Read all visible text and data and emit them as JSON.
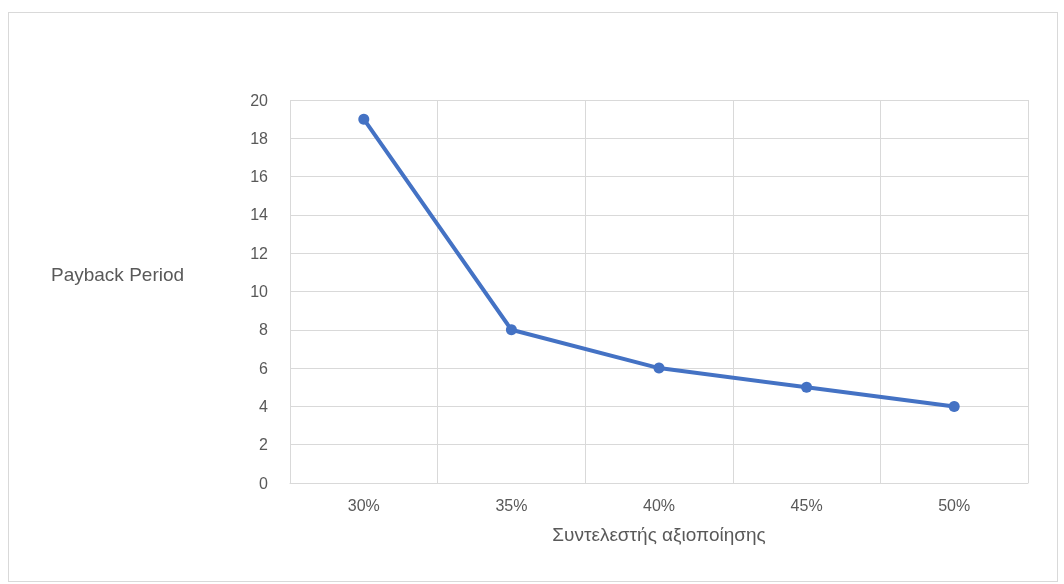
{
  "chart_data": {
    "type": "line",
    "xlabel": "Συντελεστής αξιοποίησης",
    "ylabel": "Payback Period",
    "categories": [
      "30%",
      "35%",
      "40%",
      "45%",
      "50%"
    ],
    "series": [
      {
        "color": "#4472c4",
        "values": [
          19,
          8,
          6,
          5,
          4
        ]
      }
    ],
    "ylim": [
      0,
      20
    ],
    "yticks": [
      0,
      2,
      4,
      6,
      8,
      10,
      12,
      14,
      16,
      18,
      20
    ],
    "grid": true,
    "marker": "circle",
    "line_style": "solid"
  }
}
